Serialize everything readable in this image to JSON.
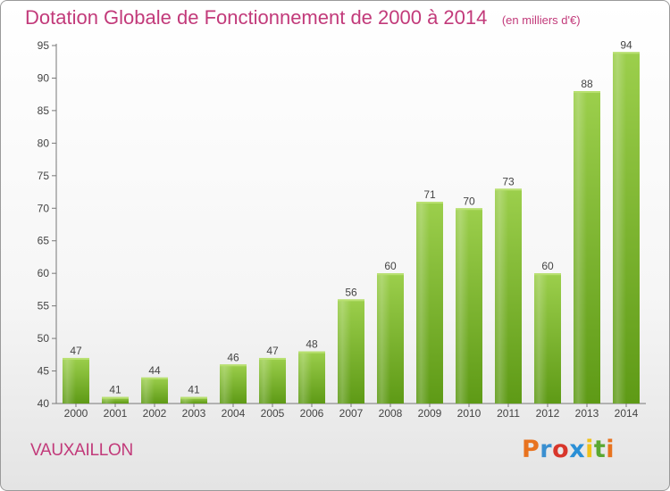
{
  "header": {
    "title": "Dotation Globale de Fonctionnement de 2000 à 2014",
    "unit": "(en milliers d'€)"
  },
  "footer": {
    "commune": "VAUXAILLON",
    "logo_text": "Proxiti",
    "logo_colors": [
      "#e8731f",
      "#3a8fd0",
      "#d8362b",
      "#2a8fd6",
      "#f0c21a",
      "#5aa832",
      "#e8731f"
    ]
  },
  "chart_data": {
    "type": "bar",
    "title": "Dotation Globale de Fonctionnement de 2000 à 2014",
    "subtitle": "(en milliers d'€)",
    "xlabel": "",
    "ylabel": "",
    "categories": [
      "2000",
      "2001",
      "2002",
      "2003",
      "2004",
      "2005",
      "2006",
      "2007",
      "2008",
      "2009",
      "2010",
      "2011",
      "2012",
      "2013",
      "2014"
    ],
    "values": [
      47,
      41,
      44,
      41,
      46,
      47,
      48,
      56,
      60,
      71,
      70,
      73,
      60,
      88,
      94
    ],
    "ylim": [
      40,
      95
    ],
    "yticks": [
      40,
      45,
      50,
      55,
      60,
      65,
      70,
      75,
      80,
      85,
      90,
      95
    ],
    "grid": false,
    "legend": "none",
    "colors": {
      "bar_top": "#9ccf4c",
      "bar_bottom": "#5e9a16",
      "axis": "#777777",
      "label": "#444444"
    }
  }
}
